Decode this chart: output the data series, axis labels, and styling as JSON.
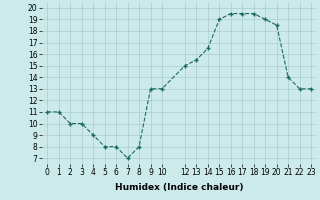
{
  "x": [
    0,
    1,
    2,
    3,
    4,
    5,
    6,
    7,
    8,
    9,
    10,
    12,
    13,
    14,
    15,
    16,
    17,
    18,
    19,
    20,
    21,
    22,
    23
  ],
  "y": [
    11,
    11,
    10,
    10,
    9,
    8,
    8,
    7,
    8,
    13,
    13,
    15,
    15.5,
    16.5,
    19,
    19.5,
    19.5,
    19.5,
    19,
    18.5,
    14,
    13,
    13
  ],
  "line_color": "#1a6b5a",
  "marker_color": "#1a6b5a",
  "bg_color": "#cceaea",
  "grid_color": "#aacccc",
  "xlabel": "Humidex (Indice chaleur)",
  "xlim": [
    -0.5,
    23.5
  ],
  "ylim": [
    6.5,
    20.5
  ],
  "yticks": [
    7,
    8,
    9,
    10,
    11,
    12,
    13,
    14,
    15,
    16,
    17,
    18,
    19,
    20
  ],
  "xticks": [
    0,
    1,
    2,
    3,
    4,
    5,
    6,
    7,
    8,
    9,
    10,
    12,
    13,
    14,
    15,
    16,
    17,
    18,
    19,
    20,
    21,
    22,
    23
  ],
  "label_fontsize": 6.5,
  "tick_fontsize": 5.5
}
